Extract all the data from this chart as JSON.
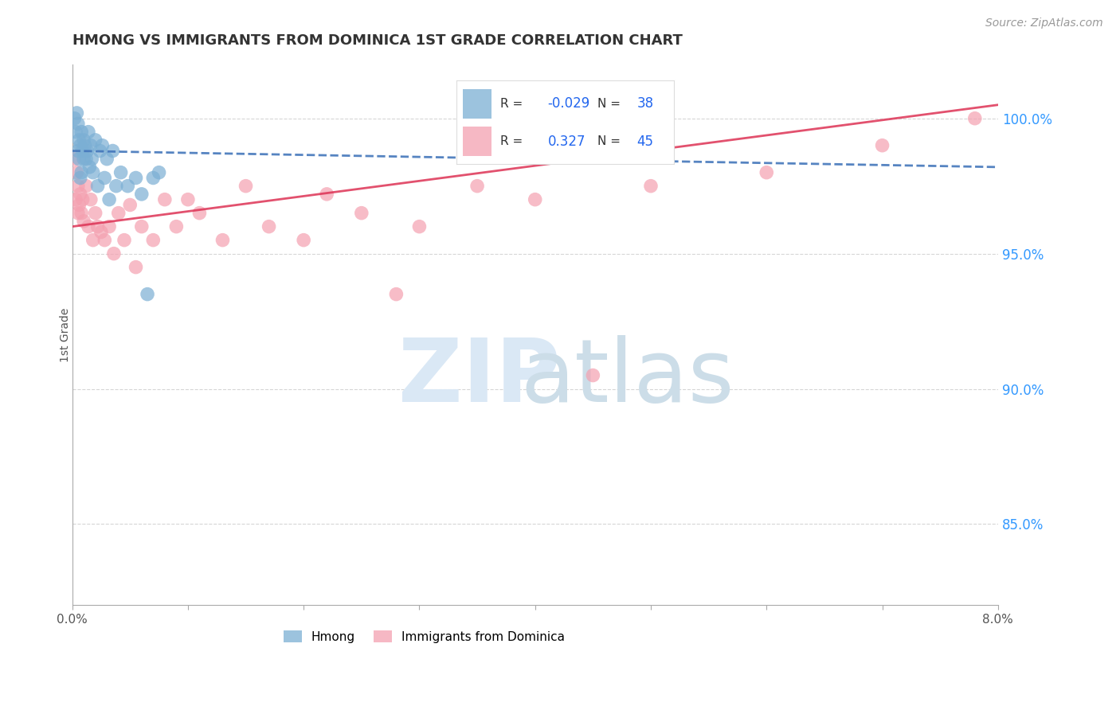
{
  "title": "HMONG VS IMMIGRANTS FROM DOMINICA 1ST GRADE CORRELATION CHART",
  "source": "Source: ZipAtlas.com",
  "ylabel": "1st Grade",
  "ylabel_right_ticks": [
    85.0,
    90.0,
    95.0,
    100.0
  ],
  "ylabel_right_labels": [
    "85.0%",
    "90.0%",
    "95.0%",
    "100.0%"
  ],
  "xlim": [
    0.0,
    8.0
  ],
  "ylim": [
    82.0,
    102.0
  ],
  "hmong_color": "#7BAFD4",
  "dominica_color": "#F4A0B0",
  "hmong_line_color": "#4477BB",
  "dominica_line_color": "#DD3355",
  "hmong_R": -0.029,
  "hmong_N": 38,
  "dominica_R": 0.327,
  "dominica_N": 45,
  "grid_color": "#cccccc",
  "legend_R_color": "#2266EE",
  "hmong_x": [
    0.02,
    0.03,
    0.04,
    0.05,
    0.05,
    0.06,
    0.06,
    0.07,
    0.07,
    0.08,
    0.08,
    0.09,
    0.1,
    0.1,
    0.11,
    0.12,
    0.13,
    0.14,
    0.15,
    0.16,
    0.17,
    0.18,
    0.2,
    0.22,
    0.24,
    0.26,
    0.28,
    0.3,
    0.32,
    0.35,
    0.38,
    0.42,
    0.48,
    0.55,
    0.6,
    0.65,
    0.7,
    0.75
  ],
  "hmong_y": [
    100.0,
    99.5,
    100.2,
    99.8,
    98.8,
    99.2,
    98.5,
    99.0,
    97.8,
    99.5,
    98.0,
    98.8,
    99.2,
    98.5,
    99.0,
    98.5,
    98.8,
    99.5,
    98.2,
    99.0,
    98.5,
    98.0,
    99.2,
    97.5,
    98.8,
    99.0,
    97.8,
    98.5,
    97.0,
    98.8,
    97.5,
    98.0,
    97.5,
    97.8,
    97.2,
    93.5,
    97.8,
    98.0
  ],
  "dominica_x": [
    0.02,
    0.03,
    0.04,
    0.05,
    0.05,
    0.06,
    0.07,
    0.08,
    0.09,
    0.1,
    0.12,
    0.14,
    0.16,
    0.18,
    0.2,
    0.22,
    0.25,
    0.28,
    0.32,
    0.36,
    0.4,
    0.45,
    0.5,
    0.55,
    0.6,
    0.7,
    0.8,
    0.9,
    1.0,
    1.1,
    1.3,
    1.5,
    1.7,
    2.0,
    2.2,
    2.5,
    2.8,
    3.0,
    3.5,
    4.0,
    4.5,
    5.0,
    6.0,
    7.0,
    7.8
  ],
  "dominica_y": [
    98.5,
    97.0,
    98.0,
    96.5,
    97.5,
    96.8,
    97.2,
    96.5,
    97.0,
    96.2,
    97.5,
    96.0,
    97.0,
    95.5,
    96.5,
    96.0,
    95.8,
    95.5,
    96.0,
    95.0,
    96.5,
    95.5,
    96.8,
    94.5,
    96.0,
    95.5,
    97.0,
    96.0,
    97.0,
    96.5,
    95.5,
    97.5,
    96.0,
    95.5,
    97.2,
    96.5,
    93.5,
    96.0,
    97.5,
    97.0,
    90.5,
    97.5,
    98.0,
    99.0,
    100.0
  ]
}
